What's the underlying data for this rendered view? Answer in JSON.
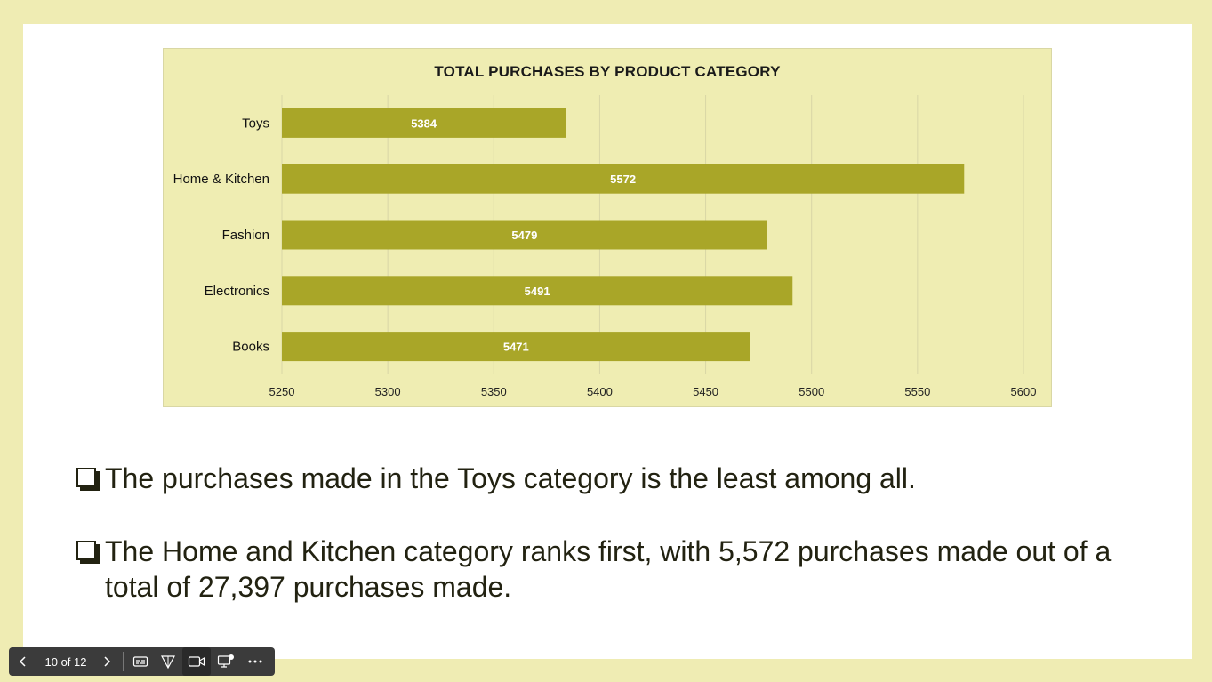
{
  "slide": {
    "bullets": [
      "The purchases made in the Toys category is the least among all.",
      "The Home and Kitchen category ranks first, with 5,572 purchases made out of a total of 27,397 purchases made."
    ]
  },
  "colors": {
    "page_bg": "#efecb3",
    "chart_bg": "#efedb2",
    "bar": "#a9a628",
    "gridline": "#d8d6a6",
    "text": "#222211"
  },
  "toolbar": {
    "page_indicator": "10 of 12",
    "prev_icon": "chevron-left-icon",
    "next_icon": "chevron-right-icon",
    "buttons": [
      "subtitles-icon",
      "laser-pointer-icon",
      "camera-icon",
      "screen-share-icon",
      "more-icon"
    ]
  },
  "chart_data": {
    "type": "bar",
    "orientation": "horizontal",
    "title": "TOTAL PURCHASES BY PRODUCT CATEGORY",
    "categories": [
      "Toys",
      "Home & Kitchen",
      "Fashion",
      "Electronics",
      "Books"
    ],
    "values": [
      5384,
      5572,
      5479,
      5491,
      5471
    ],
    "data_labels": [
      "5384",
      "5572",
      "5479",
      "5491",
      "5471"
    ],
    "xlim": [
      5250,
      5600
    ],
    "xticks": [
      "5250",
      "5300",
      "5350",
      "5400",
      "5450",
      "5500",
      "5550",
      "5600"
    ],
    "xlabel": "",
    "ylabel": "",
    "grid": true,
    "legend": "none"
  }
}
